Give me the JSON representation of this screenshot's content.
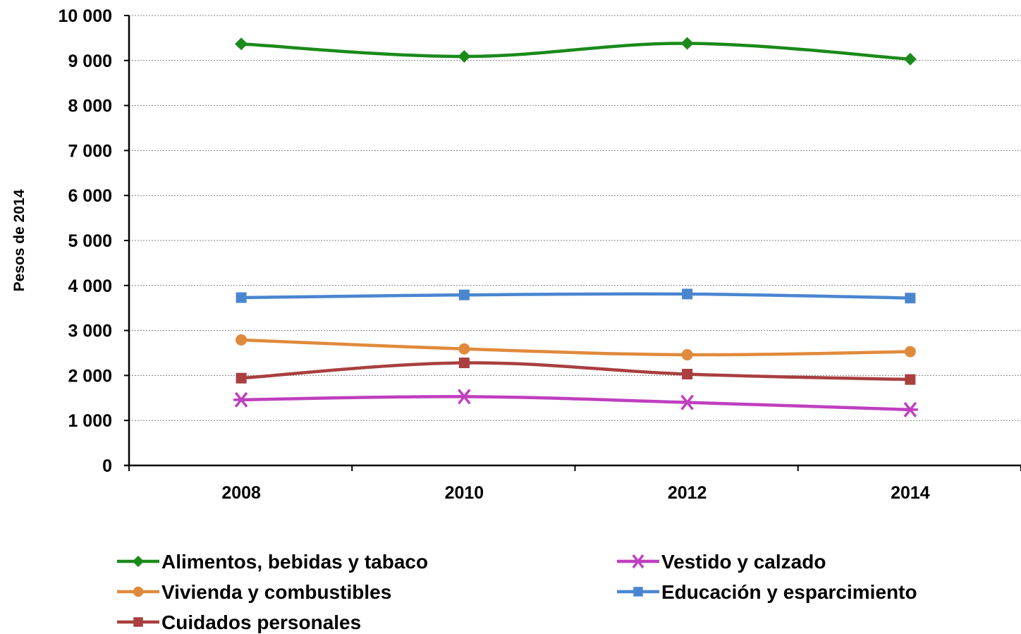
{
  "chart_data": {
    "type": "line",
    "ylabel": "Pesos de 2014",
    "xlabel": "",
    "categories": [
      "2008",
      "2010",
      "2012",
      "2014"
    ],
    "ylim": [
      0,
      10000
    ],
    "y_ticks": [
      0,
      1000,
      2000,
      3000,
      4000,
      5000,
      6000,
      7000,
      8000,
      9000,
      10000
    ],
    "y_tick_labels": [
      "0",
      "1 000",
      "2 000",
      "3 000",
      "4 000",
      "5 000",
      "6 000",
      "7 000",
      "8 000",
      "9 000",
      "10 000"
    ],
    "grid": true,
    "legend_position": "bottom",
    "series": [
      {
        "name": "Alimentos, bebidas y tabaco",
        "values": [
          9370,
          9090,
          9380,
          9030
        ],
        "color": "#1a8a1a",
        "marker": "diamond"
      },
      {
        "name": "Vestido y calzado",
        "values": [
          1460,
          1530,
          1400,
          1240
        ],
        "color": "#bf3fbf",
        "marker": "star"
      },
      {
        "name": "Vivienda y combustibles",
        "values": [
          2790,
          2590,
          2460,
          2530
        ],
        "color": "#e08a3c",
        "marker": "circle"
      },
      {
        "name": "Educación y esparcimiento",
        "values": [
          3730,
          3790,
          3810,
          3720
        ],
        "color": "#4a86d0",
        "marker": "square"
      },
      {
        "name": "Cuidados personales",
        "values": [
          1940,
          2280,
          2030,
          1910
        ],
        "color": "#a93f3f",
        "marker": "square"
      }
    ]
  }
}
